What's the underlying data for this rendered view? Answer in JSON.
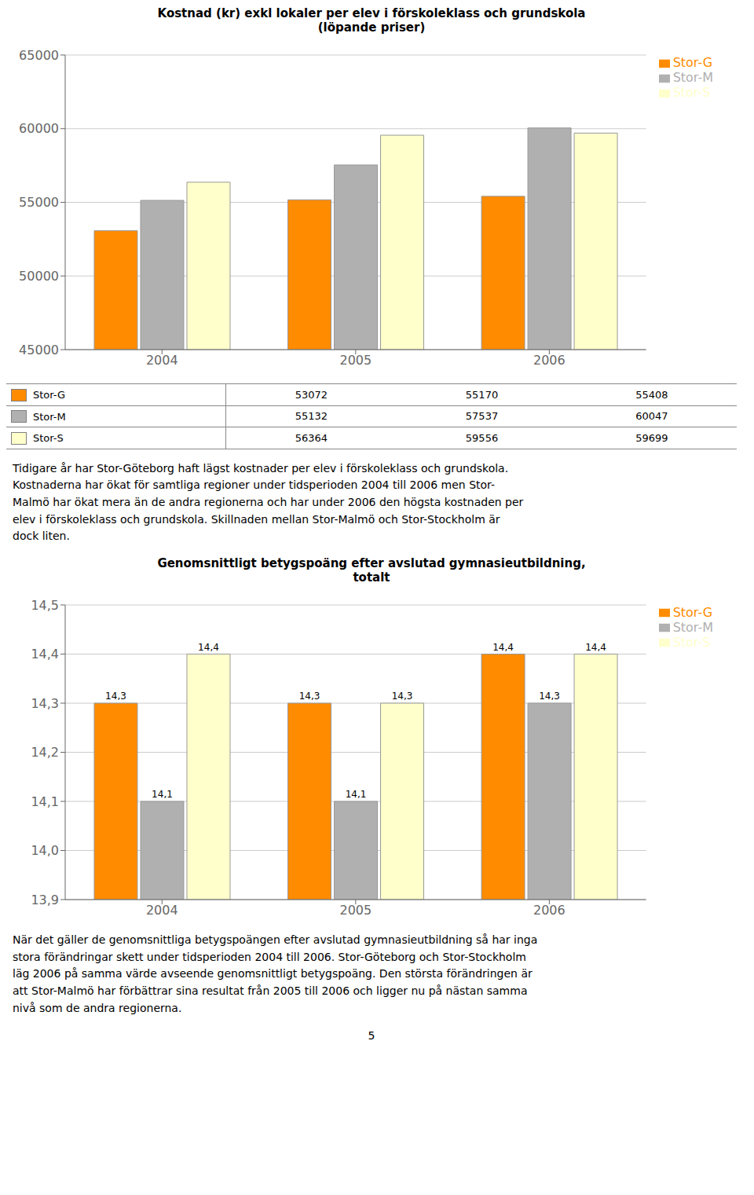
{
  "chart_data": [
    {
      "type": "bar",
      "title": "Kostnad (kr) exkl lokaler per elev i förskoleklass och grundskola\n(löpande priser)",
      "categories": [
        "2004",
        "2005",
        "2006"
      ],
      "series": [
        {
          "name": "Stor-G",
          "color": "#FF8C00",
          "values": [
            53072,
            55170,
            55408
          ]
        },
        {
          "name": "Stor-M",
          "color": "#B0B0B0",
          "values": [
            55132,
            57537,
            60047
          ]
        },
        {
          "name": "Stor-S",
          "color": "#FFFFCC",
          "values": [
            56364,
            59556,
            59699
          ]
        }
      ],
      "ylim": [
        45000,
        65000
      ],
      "yticks": [
        45000,
        50000,
        55000,
        60000,
        65000
      ],
      "grid": true,
      "legend": "upper right"
    },
    {
      "type": "table",
      "series": [
        {
          "name": "Stor-G",
          "color": "#FF8C00",
          "values": [
            53072,
            55170,
            55408
          ]
        },
        {
          "name": "Stor-M",
          "color": "#B0B0B0",
          "values": [
            55132,
            57537,
            60047
          ]
        },
        {
          "name": "Stor-S",
          "color": "#FFFFCC",
          "values": [
            56364,
            59556,
            59699
          ]
        }
      ]
    },
    {
      "type": "text",
      "annotations": [
        "Tidigare år har Stor-Göteborg haft lägst kostnader per elev i förskoleklass och grundskola.\nKostnaderna har ökat för samtliga regioner under tidsperioden 2004 till 2006 men Stor-\nMalmö har ökat mera än de andra regionerna och har under 2006 den högsta kostnaden per\nelev i förskoleklass och grundskola. Skillnaden mellan Stor-Malmö och Stor-Stockholm är\ndock liten."
      ]
    },
    {
      "type": "bar",
      "title": "Genomsnittligt betygspoäng efter avslutad gymnasieutbildning,\ntotalt",
      "categories": [
        "2004",
        "2005",
        "2006"
      ],
      "series": [
        {
          "name": "Stor-G",
          "color": "#FF8C00",
          "values": [
            14.3,
            14.3,
            14.4
          ],
          "value_labels": [
            "14,3",
            "14,3",
            "14,4"
          ]
        },
        {
          "name": "Stor-M",
          "color": "#B0B0B0",
          "values": [
            14.1,
            14.1,
            14.3
          ],
          "value_labels": [
            "14,1",
            "14,1",
            "14,3"
          ]
        },
        {
          "name": "Stor-S",
          "color": "#FFFFCC",
          "values": [
            14.4,
            14.3,
            14.4
          ],
          "value_labels": [
            "14,4",
            "14,3",
            "14,4"
          ]
        }
      ],
      "ylim": [
        13.9,
        14.5
      ],
      "yticks": [
        {
          "value": 13.9,
          "label": "13,9"
        },
        {
          "value": 14.0,
          "label": "14,0"
        },
        {
          "value": 14.1,
          "label": "14,1"
        },
        {
          "value": 14.2,
          "label": "14,2"
        },
        {
          "value": 14.3,
          "label": "14,3"
        },
        {
          "value": 14.4,
          "label": "14,4"
        },
        {
          "value": 14.5,
          "label": "14,5"
        }
      ],
      "grid": true,
      "legend": "upper right",
      "data_labels": true
    },
    {
      "type": "text",
      "annotations": [
        "När det gäller de genomsnittliga betygspoängen efter avslutad gymnasieutbildning så har inga\nstora förändringar skett under tidsperioden 2004 till 2006. Stor-Göteborg och Stor-Stockholm\nläg 2006 på samma värde avseende genomsnittligt betygspoäng. Den största förändringen är\natt Stor-Malmö har förbättrar sina resultat från 2005 till 2006 och ligger nu på nästan samma\nnivå som de andra regionerna."
      ]
    },
    {
      "type": "text",
      "annotations": [
        "5"
      ]
    }
  ]
}
